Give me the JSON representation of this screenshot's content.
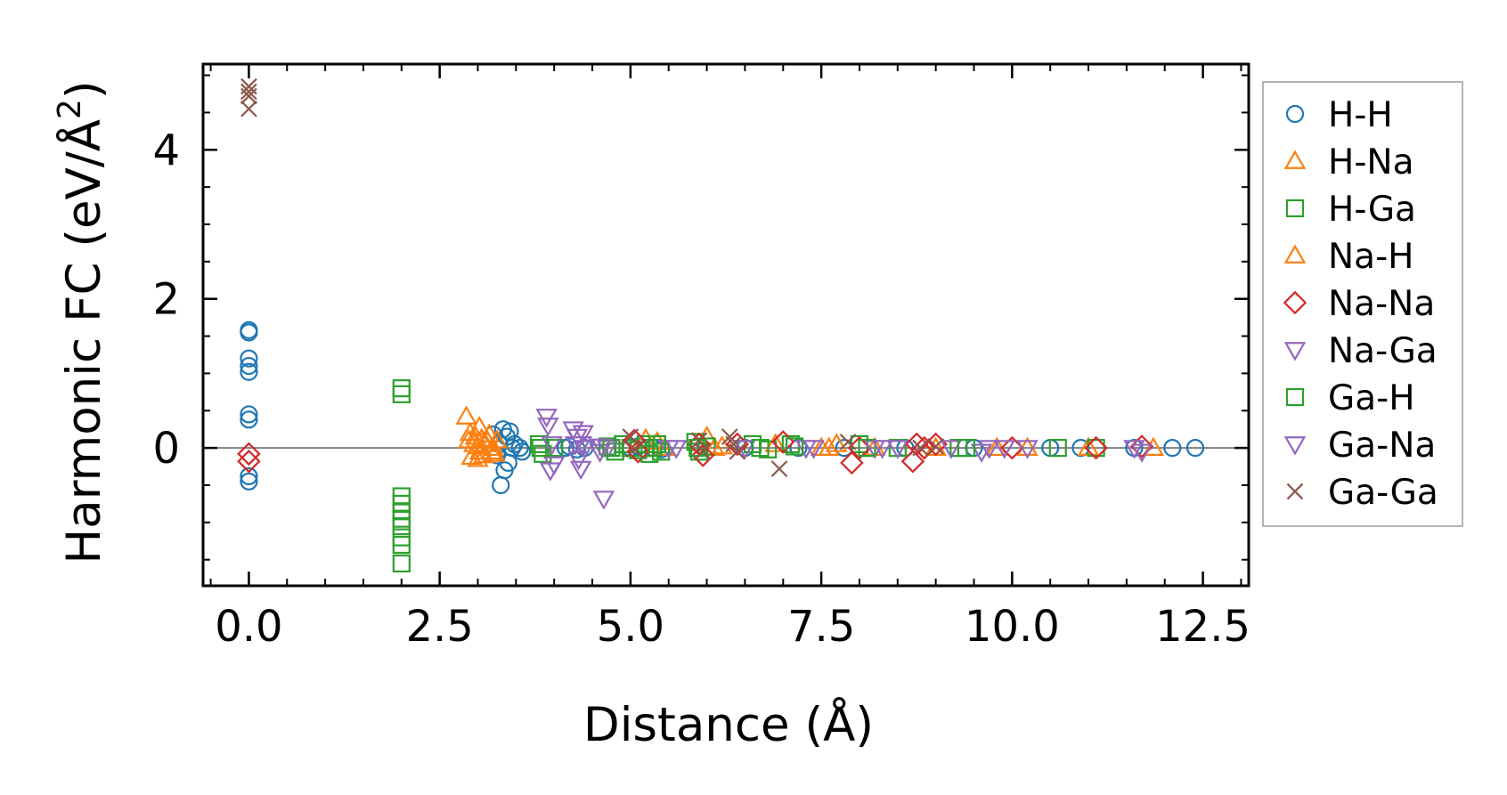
{
  "chart_data": {
    "type": "scatter",
    "title": "",
    "xlabel": "Distance (Å)",
    "ylabel_main": "Harmonic FC (eV/Å",
    "ylabel_sup": "2",
    "ylabel_close": ")",
    "xlim": [
      -0.6,
      13.1
    ],
    "ylim": [
      -1.85,
      5.15
    ],
    "xticks": [
      0.0,
      2.5,
      5.0,
      7.5,
      10.0,
      12.5
    ],
    "xtick_labels": [
      "0.0",
      "2.5",
      "5.0",
      "7.5",
      "10.0",
      "12.5"
    ],
    "yticks": [
      0,
      2,
      4
    ],
    "ytick_labels": [
      "0",
      "2",
      "4"
    ],
    "zero_line": true,
    "legend_position": "right",
    "series": [
      {
        "name": "H-H",
        "marker": "circle",
        "color": "#1f77b4",
        "points": [
          [
            0,
            1.58
          ],
          [
            0,
            1.55
          ],
          [
            0,
            1.2
          ],
          [
            0,
            1.1
          ],
          [
            0,
            1.02
          ],
          [
            0,
            0.45
          ],
          [
            0,
            0.38
          ],
          [
            0,
            -0.38
          ],
          [
            0,
            -0.45
          ],
          [
            3.2,
            0.18
          ],
          [
            3.25,
            -0.1
          ],
          [
            3.28,
            0.05
          ],
          [
            3.3,
            -0.5
          ],
          [
            3.33,
            0.25
          ],
          [
            3.35,
            -0.3
          ],
          [
            3.38,
            0.15
          ],
          [
            3.4,
            -0.2
          ],
          [
            3.42,
            0.22
          ],
          [
            3.45,
            0.0
          ],
          [
            3.48,
            0.05
          ],
          [
            3.55,
            0.0
          ],
          [
            3.58,
            -0.05
          ],
          [
            4.15,
            0.0
          ],
          [
            4.2,
            0.02
          ],
          [
            4.3,
            -0.02
          ],
          [
            4.4,
            0.0
          ],
          [
            5.0,
            0.0
          ],
          [
            5.1,
            0.02
          ],
          [
            5.3,
            0.0
          ],
          [
            5.4,
            -0.02
          ],
          [
            6.5,
            0.0
          ],
          [
            7.2,
            0.0
          ],
          [
            7.8,
            0.0
          ],
          [
            8.6,
            0.0
          ],
          [
            9.5,
            0.0
          ],
          [
            10.5,
            0.0
          ],
          [
            10.9,
            0.0
          ],
          [
            11.6,
            0.0
          ],
          [
            12.1,
            0.0
          ],
          [
            12.4,
            0.0
          ]
        ]
      },
      {
        "name": "H-Na",
        "marker": "triangle-up",
        "color": "#ff7f0e",
        "points": [
          [
            2.85,
            0.42
          ],
          [
            2.9,
            0.2
          ],
          [
            2.95,
            0.05
          ],
          [
            3.0,
            -0.15
          ],
          [
            3.02,
            0.28
          ],
          [
            3.05,
            0.12
          ],
          [
            3.08,
            -0.1
          ],
          [
            3.1,
            0.05
          ],
          [
            3.15,
            0.18
          ],
          [
            3.18,
            -0.05
          ],
          [
            3.2,
            0.0
          ],
          [
            3.25,
            0.1
          ],
          [
            5.2,
            0.12
          ],
          [
            5.35,
            0.08
          ],
          [
            5.45,
            0.0
          ],
          [
            6.0,
            0.15
          ],
          [
            6.1,
            0.0
          ],
          [
            6.9,
            0.05
          ],
          [
            7.5,
            0.0
          ],
          [
            7.7,
            0.05
          ],
          [
            8.2,
            0.0
          ],
          [
            9.0,
            0.0
          ],
          [
            10.2,
            0.0
          ],
          [
            11.0,
            0.0
          ],
          [
            11.85,
            0.0
          ]
        ]
      },
      {
        "name": "H-Ga",
        "marker": "square",
        "color": "#2ca02c",
        "points": [
          [
            2.0,
            0.8
          ],
          [
            2.0,
            0.72
          ],
          [
            2.0,
            -0.65
          ],
          [
            2.0,
            -0.75
          ],
          [
            2.0,
            -0.85
          ],
          [
            2.0,
            -0.95
          ],
          [
            2.0,
            -1.05
          ],
          [
            2.0,
            -1.2
          ],
          [
            2.0,
            -1.3
          ],
          [
            2.0,
            -1.55
          ],
          [
            3.8,
            0.05
          ],
          [
            3.85,
            -0.08
          ],
          [
            4.0,
            0.0
          ],
          [
            4.7,
            0.02
          ],
          [
            4.8,
            -0.05
          ],
          [
            4.9,
            0.05
          ],
          [
            5.0,
            0.0
          ],
          [
            5.1,
            -0.03
          ],
          [
            5.2,
            0.05
          ],
          [
            5.3,
            0.0
          ],
          [
            5.4,
            -0.05
          ],
          [
            5.85,
            0.08
          ],
          [
            5.9,
            -0.05
          ],
          [
            6.0,
            0.02
          ],
          [
            6.6,
            0.05
          ],
          [
            6.8,
            -0.02
          ],
          [
            7.1,
            0.05
          ],
          [
            8.0,
            0.05
          ],
          [
            8.5,
            0.0
          ],
          [
            9.3,
            0.0
          ],
          [
            10.6,
            0.0
          ],
          [
            11.1,
            0.0
          ]
        ]
      },
      {
        "name": "Na-H",
        "marker": "triangle-up",
        "color": "#ff7f0e",
        "points": [
          [
            2.88,
            0.1
          ],
          [
            2.92,
            -0.12
          ],
          [
            2.97,
            0.15
          ],
          [
            3.0,
            0.02
          ],
          [
            3.03,
            -0.05
          ],
          [
            3.12,
            0.1
          ],
          [
            3.22,
            -0.08
          ],
          [
            6.2,
            0.02
          ],
          [
            7.6,
            0.0
          ],
          [
            9.8,
            0.0
          ]
        ]
      },
      {
        "name": "Na-Na",
        "marker": "diamond",
        "color": "#d62728",
        "points": [
          [
            0,
            -0.08
          ],
          [
            0,
            -0.18
          ],
          [
            5.05,
            0.1
          ],
          [
            5.1,
            -0.05
          ],
          [
            5.9,
            0.05
          ],
          [
            5.95,
            -0.1
          ],
          [
            6.4,
            0.05
          ],
          [
            7.0,
            0.08
          ],
          [
            7.9,
            -0.2
          ],
          [
            8.0,
            0.0
          ],
          [
            8.7,
            -0.18
          ],
          [
            8.75,
            0.05
          ],
          [
            8.85,
            0.0
          ],
          [
            9.0,
            0.05
          ],
          [
            10.0,
            0.0
          ],
          [
            11.1,
            0.0
          ],
          [
            11.7,
            0.02
          ]
        ]
      },
      {
        "name": "Na-Ga",
        "marker": "triangle-down",
        "color": "#9467bd",
        "points": [
          [
            3.9,
            0.42
          ],
          [
            3.92,
            0.3
          ],
          [
            3.95,
            -0.3
          ],
          [
            4.0,
            -0.22
          ],
          [
            4.25,
            0.25
          ],
          [
            4.3,
            0.15
          ],
          [
            4.32,
            -0.15
          ],
          [
            4.35,
            -0.28
          ],
          [
            4.38,
            0.2
          ],
          [
            4.4,
            0.0
          ],
          [
            4.6,
            -0.05
          ],
          [
            4.65,
            -0.68
          ],
          [
            4.7,
            0.0
          ],
          [
            5.5,
            0.0
          ],
          [
            6.5,
            0.0
          ],
          [
            7.3,
            0.0
          ],
          [
            8.2,
            0.0
          ],
          [
            8.5,
            0.0
          ],
          [
            9.2,
            0.0
          ],
          [
            9.6,
            -0.05
          ],
          [
            9.9,
            0.0
          ],
          [
            10.2,
            0.0
          ],
          [
            11.6,
            0.0
          ],
          [
            11.7,
            -0.05
          ]
        ]
      },
      {
        "name": "Ga-H",
        "marker": "square",
        "color": "#2ca02c",
        "points": [
          [
            3.82,
            0.0
          ],
          [
            4.75,
            0.0
          ],
          [
            5.25,
            -0.08
          ],
          [
            5.35,
            0.05
          ],
          [
            5.88,
            0.0
          ],
          [
            6.7,
            0.0
          ],
          [
            7.15,
            0.02
          ],
          [
            8.1,
            0.0
          ],
          [
            9.4,
            0.0
          ]
        ]
      },
      {
        "name": "Ga-Na",
        "marker": "triangle-down",
        "color": "#9467bd",
        "points": [
          [
            3.97,
            0.05
          ],
          [
            4.28,
            0.05
          ],
          [
            4.36,
            0.05
          ],
          [
            4.62,
            0.02
          ],
          [
            5.6,
            0.0
          ],
          [
            7.4,
            0.0
          ],
          [
            8.3,
            0.0
          ],
          [
            9.7,
            0.0
          ]
        ]
      },
      {
        "name": "Ga-Ga",
        "marker": "x",
        "color": "#8c564b",
        "points": [
          [
            0,
            4.85
          ],
          [
            0,
            4.78
          ],
          [
            0,
            4.72
          ],
          [
            0,
            4.55
          ],
          [
            5.0,
            0.15
          ],
          [
            5.05,
            -0.02
          ],
          [
            5.9,
            0.1
          ],
          [
            5.95,
            -0.05
          ],
          [
            6.3,
            0.15
          ],
          [
            6.35,
            0.05
          ],
          [
            6.4,
            -0.05
          ],
          [
            6.95,
            -0.28
          ],
          [
            7.85,
            0.08
          ],
          [
            8.8,
            0.0
          ],
          [
            9.0,
            0.02
          ]
        ]
      }
    ]
  }
}
